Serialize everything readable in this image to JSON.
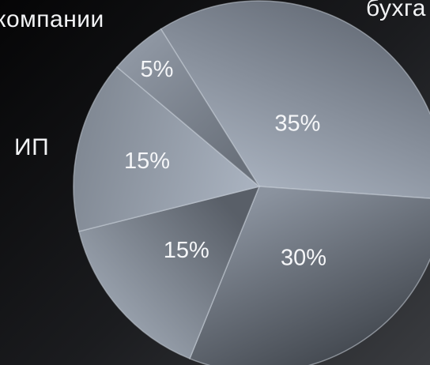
{
  "chart_data": {
    "type": "pie",
    "labels": [
      "ИП",
      "компании",
      "бухга"
    ],
    "slices": [
      {
        "label": "35%",
        "value": 35,
        "color_a": "#aab3c0",
        "color_b": "#646b76"
      },
      {
        "label": "30%",
        "value": 30,
        "color_a": "#8b939f",
        "color_b": "#3d4249"
      },
      {
        "label": "15%",
        "value": 15,
        "color_a": "#595f68",
        "color_b": "#a1aab6"
      },
      {
        "label": "15%",
        "value": 15,
        "color_a": "#a9b2bf",
        "color_b": "#7f8792"
      },
      {
        "label": "5%",
        "value": 5,
        "color_a": "#6a717b",
        "color_b": "#8e96a2"
      }
    ]
  }
}
